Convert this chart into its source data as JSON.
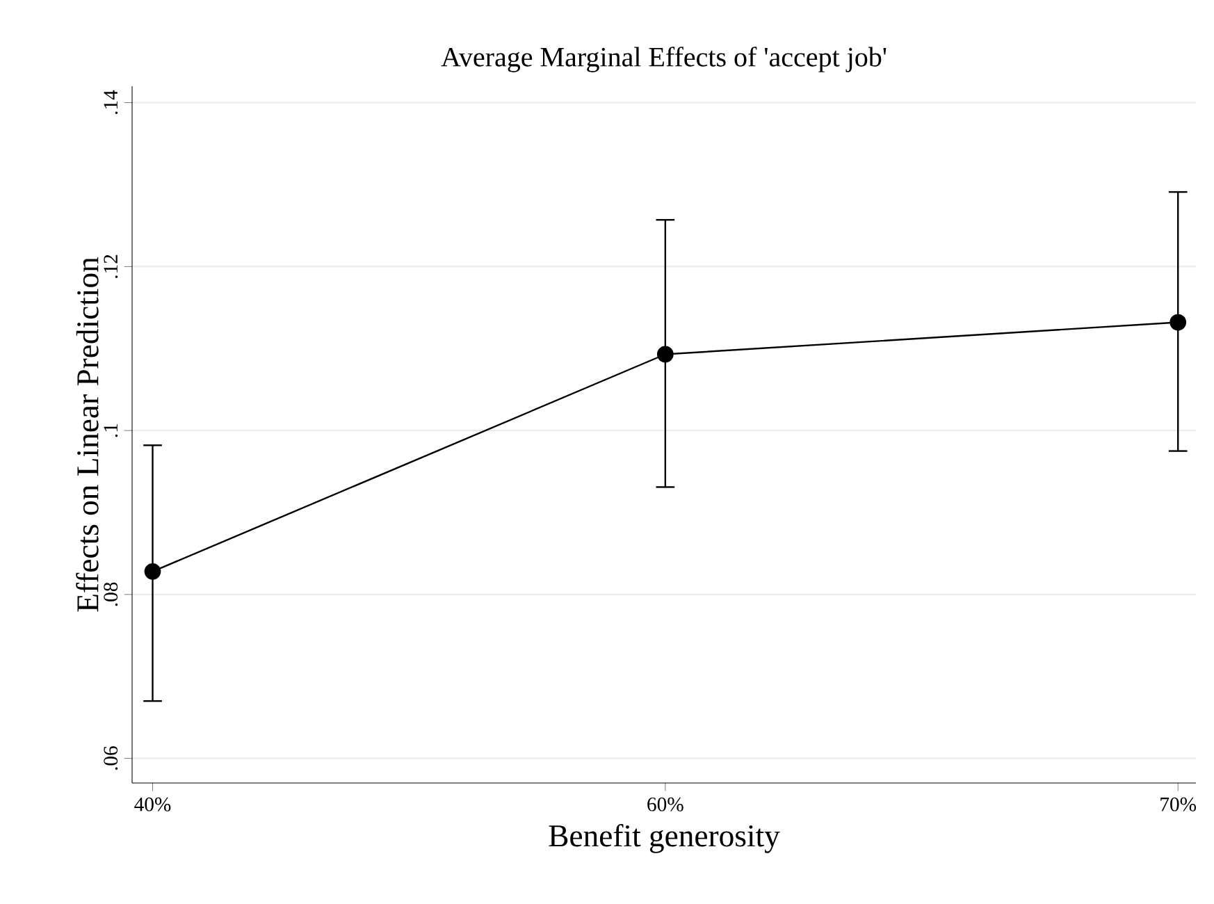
{
  "chart_data": {
    "type": "line",
    "title": "Average Marginal Effects of 'accept job'",
    "xlabel": "Benefit generosity",
    "ylabel": "Effects on Linear Prediction",
    "categories": [
      "40%",
      "60%",
      "70%"
    ],
    "series": [
      {
        "color": "#000000",
        "values": [
          0.0828,
          0.1093,
          0.1132
        ],
        "errors": [
          [
            0.067,
            0.0982
          ],
          [
            0.0931,
            0.1257
          ],
          [
            0.0975,
            0.1291
          ]
        ]
      }
    ],
    "ylim": [
      0.057,
      0.142
    ],
    "yticks": [
      {
        "value": 0.06,
        "label": ".06"
      },
      {
        "value": 0.08,
        "label": ".08"
      },
      {
        "value": 0.1,
        "label": ".1"
      },
      {
        "value": 0.12,
        "label": ".12"
      },
      {
        "value": 0.14,
        "label": ".14"
      }
    ],
    "grid": "y",
    "marker": "circle",
    "line_style": "solid"
  }
}
